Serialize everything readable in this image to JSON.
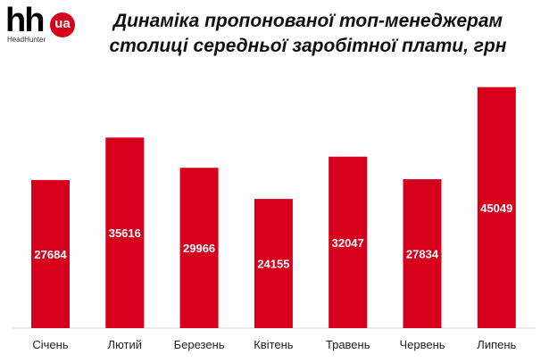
{
  "logo": {
    "brand": "hh",
    "badge": "ua",
    "subtitle": "HeadHunter"
  },
  "chart_data": {
    "type": "bar",
    "title_line1": "Динаміка пропонованої топ-менеджерам",
    "title_line2": "столиці середньої заробітної плати, грн",
    "categories": [
      "Січень",
      "Лютий",
      "Березень",
      "Квітень",
      "Травень",
      "Червень",
      "Липень"
    ],
    "values": [
      27684,
      35616,
      29966,
      24155,
      32047,
      27834,
      45049
    ],
    "xlabel": "",
    "ylabel": "",
    "ylim": [
      0,
      47000
    ],
    "grid": false,
    "legend": "none",
    "bar_color": "#d6001c"
  }
}
